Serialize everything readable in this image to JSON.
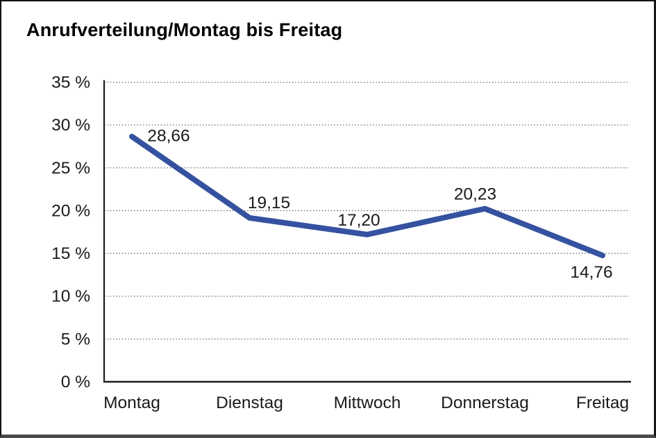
{
  "title": "Anrufverteilung/Montag bis Freitag",
  "chart_data": {
    "type": "line",
    "title": "Anrufverteilung/Montag bis Freitag",
    "categories": [
      "Montag",
      "Dienstag",
      "Mittwoch",
      "Donnerstag",
      "Freitag"
    ],
    "values": [
      28.66,
      19.15,
      17.2,
      20.23,
      14.76
    ],
    "value_labels": [
      "28,66",
      "19,15",
      "17,20",
      "20,23",
      "14,76"
    ],
    "yticks": [
      35,
      30,
      25,
      20,
      15,
      10,
      5,
      0
    ],
    "ytick_labels": [
      "35 %",
      "30 %",
      "25 %",
      "20 %",
      "15 %",
      "10 %",
      "5 %",
      "0 %"
    ],
    "ylim": [
      0,
      35
    ],
    "xlabel": "",
    "ylabel": "",
    "grid": "horizontal-dotted",
    "legend": "none",
    "colors": {
      "line": "#3552a0",
      "grid": "#666666",
      "axis": "#1a1a1a",
      "text": "#1a1a1a"
    }
  }
}
